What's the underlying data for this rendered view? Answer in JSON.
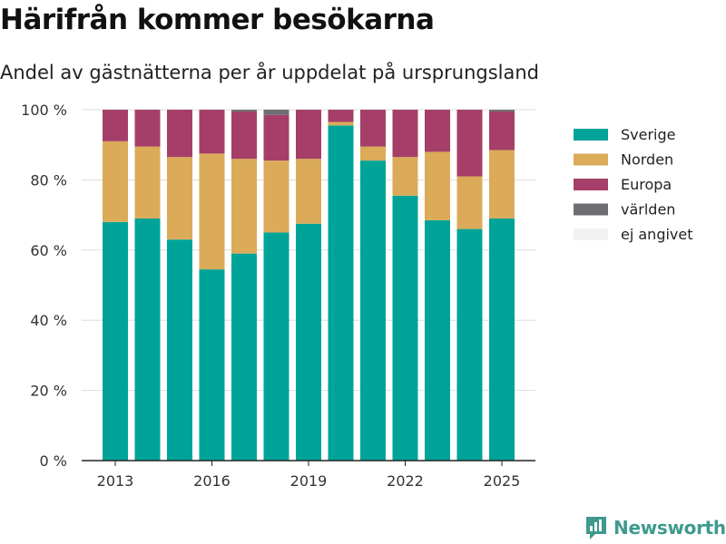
{
  "title": "Härifrån kommer besökarna",
  "subtitle": "Andel av gästnätterna per år uppdelat på ursprungsland",
  "brand": {
    "name": "Newsworthy",
    "icon": "bar-chart-logo-icon",
    "color": "#3e9a8e"
  },
  "chart_data": {
    "type": "bar",
    "stacked": true,
    "x": [
      2013,
      2014,
      2015,
      2016,
      2017,
      2018,
      2019,
      2020,
      2021,
      2022,
      2023,
      2024,
      2025
    ],
    "x_ticks": [
      "2013",
      "2016",
      "2019",
      "2022",
      "2025"
    ],
    "y_ticks": [
      "0 %",
      "20 %",
      "40 %",
      "60 %",
      "80 %",
      "100 %"
    ],
    "ylim": [
      0,
      100
    ],
    "grid": true,
    "legend_position": "right",
    "series": [
      {
        "name": "Sverige",
        "color": "#00a398",
        "values": [
          68,
          69,
          63,
          54.5,
          59,
          65,
          67.5,
          95.5,
          85.5,
          75.5,
          68.5,
          66,
          69
        ]
      },
      {
        "name": "Norden",
        "color": "#dbab59",
        "values": [
          23,
          20.5,
          23.5,
          33,
          27,
          20.5,
          18.5,
          1,
          4,
          11,
          19.5,
          15,
          19.5
        ]
      },
      {
        "name": "Europa",
        "color": "#a53f69",
        "values": [
          9,
          10.5,
          13.5,
          12.5,
          13.5,
          13,
          14,
          3.5,
          10.5,
          13.5,
          12,
          19,
          11
        ]
      },
      {
        "name": "världen",
        "color": "#6d6e72",
        "values": [
          0,
          0,
          0,
          0,
          0.5,
          1.5,
          0,
          0,
          0,
          0,
          0,
          0,
          0.5
        ]
      },
      {
        "name": "ej angivet",
        "color": "#f2f2f2",
        "values": [
          0,
          0,
          0,
          0,
          0,
          0,
          0,
          0,
          0,
          0,
          0,
          0,
          0
        ]
      }
    ]
  }
}
